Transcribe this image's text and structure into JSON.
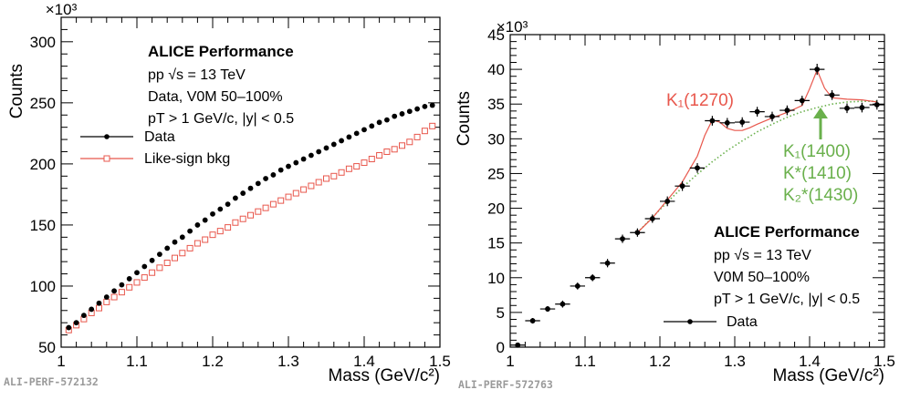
{
  "chart_data": [
    {
      "type": "scatter",
      "xlabel": "Mass (GeV/c²)",
      "ylabel": "Counts",
      "y_multiplier": "×10³",
      "xlim": [
        1.0,
        1.5
      ],
      "ylim": [
        50,
        320
      ],
      "x_ticks": [
        "1",
        "1.1",
        "1.2",
        "1.3",
        "1.4",
        "1.5"
      ],
      "y_ticks": [
        "50",
        "100",
        "150",
        "200",
        "250",
        "300"
      ],
      "y_tick_values": [
        50,
        100,
        150,
        200,
        250,
        300
      ],
      "info": {
        "title": "ALICE Performance",
        "line1": "pp √s = 13 TeV",
        "line2": "Data, V0M 50–100%",
        "line3": "pT > 1 GeV/c, |y| < 0.5"
      },
      "legend": {
        "position": "middle-left",
        "entries": [
          "Data",
          "Like-sign bkg"
        ]
      },
      "series": [
        {
          "name": "Data",
          "marker": "filled-circle",
          "color": "#000000",
          "x": [
            1.01,
            1.02,
            1.03,
            1.04,
            1.05,
            1.06,
            1.07,
            1.08,
            1.09,
            1.1,
            1.11,
            1.12,
            1.13,
            1.14,
            1.15,
            1.16,
            1.17,
            1.18,
            1.19,
            1.2,
            1.21,
            1.22,
            1.23,
            1.24,
            1.25,
            1.26,
            1.27,
            1.28,
            1.29,
            1.3,
            1.31,
            1.32,
            1.33,
            1.34,
            1.35,
            1.36,
            1.37,
            1.38,
            1.39,
            1.4,
            1.41,
            1.42,
            1.43,
            1.44,
            1.45,
            1.46,
            1.47,
            1.48,
            1.49
          ],
          "y": [
            66,
            70,
            76,
            81,
            86,
            91,
            96,
            101,
            106,
            111,
            116,
            121,
            126,
            131,
            136,
            140,
            145,
            150,
            154,
            159,
            163,
            167,
            172,
            176,
            180,
            184,
            188,
            191,
            195,
            198,
            201,
            204,
            207,
            210,
            213,
            216,
            219,
            222,
            225,
            228,
            231,
            234,
            236,
            239,
            241,
            243,
            245,
            247,
            248
          ]
        },
        {
          "name": "Like-sign bkg",
          "marker": "open-square",
          "color": "#e8574c",
          "x": [
            1.01,
            1.02,
            1.03,
            1.04,
            1.05,
            1.06,
            1.07,
            1.08,
            1.09,
            1.1,
            1.11,
            1.12,
            1.13,
            1.14,
            1.15,
            1.16,
            1.17,
            1.18,
            1.19,
            1.2,
            1.21,
            1.22,
            1.23,
            1.24,
            1.25,
            1.26,
            1.27,
            1.28,
            1.29,
            1.3,
            1.31,
            1.32,
            1.33,
            1.34,
            1.35,
            1.36,
            1.37,
            1.38,
            1.39,
            1.4,
            1.41,
            1.42,
            1.43,
            1.44,
            1.45,
            1.46,
            1.47,
            1.48,
            1.49
          ],
          "y": [
            64,
            68,
            73,
            78,
            82,
            87,
            91,
            95,
            99,
            103,
            107,
            111,
            115,
            119,
            123,
            127,
            131,
            135,
            138,
            142,
            145,
            148,
            152,
            155,
            158,
            161,
            164,
            167,
            170,
            173,
            176,
            179,
            182,
            185,
            188,
            190,
            193,
            196,
            198,
            201,
            204,
            207,
            210,
            212,
            215,
            218,
            222,
            227,
            231
          ]
        }
      ],
      "watermark": "ALI-PERF-572132"
    },
    {
      "type": "scatter",
      "xlabel": "Mass (GeV/c²)",
      "ylabel": "Counts",
      "y_multiplier": "×10³",
      "xlim": [
        1.0,
        1.5
      ],
      "ylim": [
        0,
        45
      ],
      "x_ticks": [
        "1",
        "1.1",
        "1.2",
        "1.3",
        "1.4",
        "1.5"
      ],
      "y_ticks": [
        "0",
        "5",
        "10",
        "15",
        "20",
        "25",
        "30",
        "35",
        "40",
        "45"
      ],
      "y_tick_values": [
        0,
        5,
        10,
        15,
        20,
        25,
        30,
        35,
        40,
        45
      ],
      "info": {
        "title": "ALICE Performance",
        "line1": "pp √s = 13 TeV",
        "line2": "V0M 50–100%",
        "line3": "pT > 1 GeV/c, |y| < 0.5"
      },
      "legend": {
        "position": "bottom-left",
        "entries": [
          "Data"
        ]
      },
      "annotations": {
        "k1_1270": "K₁(1270)",
        "k1_1400": "K₁(1400)",
        "kstar_1410": "K*(1410)",
        "k2star_1430": "K₂*(1430)",
        "red": "#e8574c",
        "green": "#6ab04c"
      },
      "series": [
        {
          "name": "Data",
          "marker": "filled-circle",
          "color": "#000000",
          "x": [
            1.01,
            1.03,
            1.05,
            1.07,
            1.09,
            1.11,
            1.13,
            1.15,
            1.17,
            1.19,
            1.21,
            1.23,
            1.25,
            1.27,
            1.29,
            1.31,
            1.33,
            1.35,
            1.37,
            1.39,
            1.41,
            1.43,
            1.45,
            1.47,
            1.49
          ],
          "y": [
            0.3,
            3.8,
            5.5,
            6.2,
            8.8,
            10.0,
            12.1,
            15.6,
            16.5,
            18.5,
            21.0,
            23.2,
            25.8,
            32.6,
            32.3,
            32.4,
            33.9,
            33.2,
            34.1,
            35.5,
            40.0,
            36.3,
            34.4,
            34.5,
            34.9
          ],
          "xerr": 0.01,
          "yerr": [
            0.3,
            0.4,
            0.4,
            0.5,
            0.5,
            0.5,
            0.6,
            0.6,
            0.6,
            0.6,
            0.7,
            0.7,
            0.7,
            0.7,
            0.7,
            0.7,
            0.7,
            0.7,
            0.7,
            0.7,
            0.8,
            0.7,
            0.7,
            0.7,
            0.7
          ]
        },
        {
          "name": "",
          "style": "line",
          "color": "#e8574c",
          "x": [
            1.17,
            1.19,
            1.21,
            1.23,
            1.25,
            1.26,
            1.27,
            1.28,
            1.29,
            1.3,
            1.31,
            1.32,
            1.33,
            1.35,
            1.37,
            1.39,
            1.4,
            1.41,
            1.42,
            1.43,
            1.45,
            1.47,
            1.49
          ],
          "y": [
            16.5,
            18.6,
            21.2,
            23.8,
            27.5,
            30.5,
            32.7,
            32.4,
            31.5,
            31.2,
            31.2,
            31.6,
            32.1,
            33.0,
            33.8,
            34.8,
            37.2,
            39.9,
            37.3,
            35.9,
            35.7,
            35.6,
            35.3
          ]
        },
        {
          "name": "",
          "style": "dotted",
          "color": "#6ab04c",
          "x": [
            1.17,
            1.19,
            1.21,
            1.23,
            1.25,
            1.27,
            1.29,
            1.31,
            1.33,
            1.35,
            1.37,
            1.39,
            1.41,
            1.43,
            1.45,
            1.47,
            1.49
          ],
          "y": [
            16.5,
            18.7,
            20.9,
            23.0,
            24.9,
            26.7,
            28.3,
            29.7,
            31.0,
            32.1,
            33.1,
            33.9,
            34.5,
            35.0,
            35.3,
            35.4,
            35.4
          ]
        }
      ],
      "watermark": "ALI-PERF-572763"
    }
  ]
}
